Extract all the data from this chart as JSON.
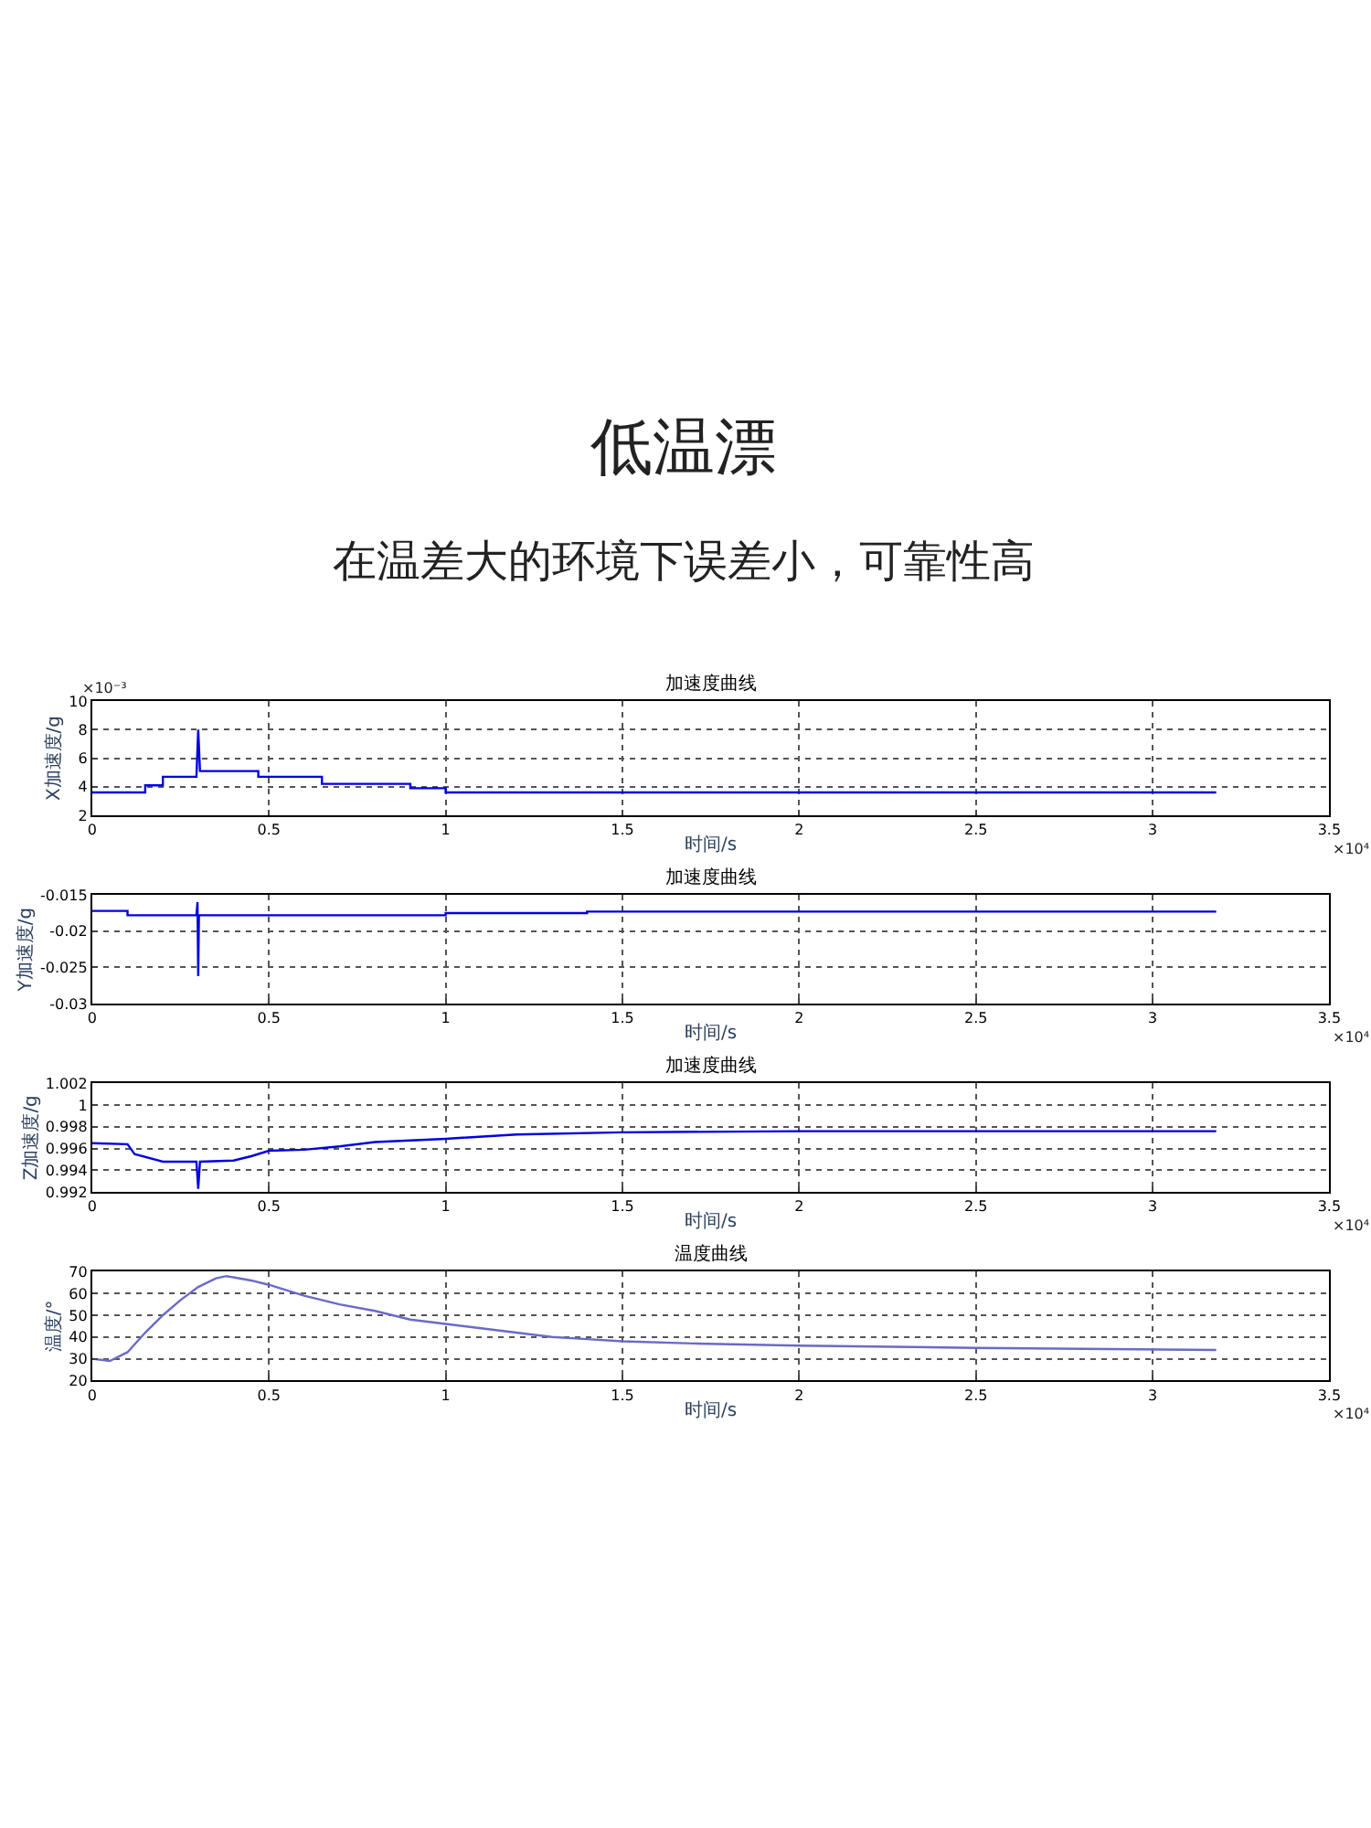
{
  "chart_data": [
    {
      "type": "line",
      "title": "加速度曲线",
      "xlabel": "时间/s",
      "ylabel": "X加速度/g",
      "annotations": [
        "低温漂",
        "在温差大的环境下误差小，可靠性高",
        "×10⁴",
        "×10⁻³"
      ],
      "series": [
        {
          "color": "#0000e0",
          "x": [
            0,
            0.15,
            0.15,
            0.2,
            0.2,
            0.295,
            0.3,
            0.305,
            0.47,
            0.47,
            0.65,
            0.65,
            0.9,
            0.9,
            1.0,
            1.0,
            3.18
          ],
          "values": [
            3.6,
            3.6,
            4.1,
            4.1,
            4.7,
            4.7,
            8.0,
            5.1,
            5.1,
            4.7,
            4.7,
            4.2,
            4.2,
            3.9,
            3.9,
            3.6,
            3.6
          ]
        }
      ],
      "xlim": [
        0,
        3.5
      ],
      "xticks": [
        0,
        0.5,
        1,
        1.5,
        2,
        2.5,
        3,
        3.5
      ],
      "ylim": [
        2,
        10
      ],
      "yticks": [
        2,
        4,
        6,
        8,
        10
      ],
      "grid": true,
      "marker": "none",
      "line_style": "solid"
    },
    {
      "type": "line",
      "title": "加速度曲线",
      "xlabel": "时间/s",
      "ylabel": "Y加速度/g",
      "annotations": [
        "×10⁴"
      ],
      "series": [
        {
          "color": "#0000e0",
          "x": [
            0,
            0.1,
            0.1,
            0.295,
            0.298,
            0.3,
            0.302,
            0.305,
            1.0,
            1.0,
            1.4,
            1.4,
            3.18
          ],
          "values": [
            -0.0172,
            -0.0172,
            -0.0178,
            -0.0178,
            -0.016,
            -0.0262,
            -0.0178,
            -0.0178,
            -0.0178,
            -0.0175,
            -0.0175,
            -0.0173,
            -0.0173
          ]
        }
      ],
      "xlim": [
        0,
        3.5
      ],
      "xticks": [
        0,
        0.5,
        1,
        1.5,
        2,
        2.5,
        3,
        3.5
      ],
      "ylim": [
        -0.03,
        -0.015
      ],
      "yticks": [
        -0.03,
        -0.025,
        -0.02,
        -0.015
      ],
      "grid": true,
      "marker": "none",
      "line_style": "solid"
    },
    {
      "type": "line",
      "title": "加速度曲线",
      "xlabel": "时间/s",
      "ylabel": "Z加速度/g",
      "annotations": [
        "×10⁴"
      ],
      "series": [
        {
          "color": "#0000e0",
          "x": [
            0,
            0.1,
            0.12,
            0.2,
            0.295,
            0.3,
            0.305,
            0.4,
            0.45,
            0.5,
            0.6,
            0.7,
            0.8,
            1.0,
            1.2,
            1.5,
            2.0,
            3.18
          ],
          "values": [
            0.9965,
            0.9964,
            0.9955,
            0.9948,
            0.9948,
            0.9923,
            0.9948,
            0.9949,
            0.9953,
            0.9958,
            0.9959,
            0.9962,
            0.9966,
            0.9969,
            0.9973,
            0.9975,
            0.9976,
            0.9976
          ]
        }
      ],
      "xlim": [
        0,
        3.5
      ],
      "xticks": [
        0,
        0.5,
        1,
        1.5,
        2,
        2.5,
        3,
        3.5
      ],
      "ylim": [
        0.992,
        1.002
      ],
      "yticks": [
        0.992,
        0.994,
        0.996,
        0.998,
        1,
        1.002
      ],
      "grid": true,
      "marker": "none",
      "line_style": "solid"
    },
    {
      "type": "line",
      "title": "温度曲线",
      "xlabel": "时间/s",
      "ylabel": "温度/°",
      "annotations": [
        "×10⁴"
      ],
      "series": [
        {
          "color": "#6a6ac8",
          "x": [
            0,
            0.05,
            0.1,
            0.15,
            0.2,
            0.25,
            0.3,
            0.35,
            0.38,
            0.45,
            0.5,
            0.6,
            0.7,
            0.8,
            0.9,
            1.0,
            1.1,
            1.2,
            1.3,
            1.4,
            1.5,
            1.7,
            2.0,
            2.5,
            3.18
          ],
          "values": [
            30,
            29,
            33,
            42,
            50,
            57,
            63,
            67,
            68,
            66,
            64,
            59,
            55,
            52,
            48,
            46,
            44,
            42,
            40,
            39,
            38,
            37,
            36,
            35,
            34
          ]
        }
      ],
      "xlim": [
        0,
        3.5
      ],
      "xticks": [
        0,
        0.5,
        1,
        1.5,
        2,
        2.5,
        3,
        3.5
      ],
      "ylim": [
        20,
        70
      ],
      "yticks": [
        20,
        30,
        40,
        50,
        60,
        70
      ],
      "grid": true,
      "marker": "none",
      "line_style": "solid"
    }
  ]
}
